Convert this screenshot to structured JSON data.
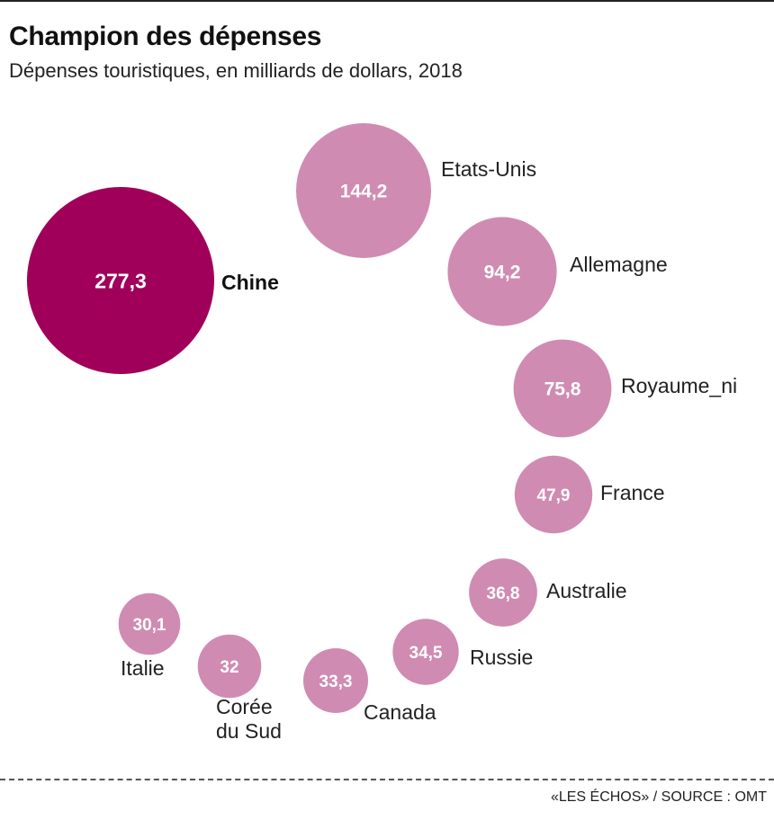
{
  "header": {
    "title": "Champion des dépenses",
    "subtitle": "Dépenses touristiques, en milliards de dollars, 2018"
  },
  "footer": {
    "source": "«LES ÉCHOS» / SOURCE : OMT"
  },
  "colors": {
    "highlight": "#a0005a",
    "default": "#d08bb2",
    "value_text": "#ffffff"
  },
  "chart_data": {
    "type": "bubble",
    "title": "Champion des dépenses",
    "subtitle": "Dépenses touristiques, en milliards de dollars, 2018",
    "unit": "milliards de dollars",
    "year": 2018,
    "series": [
      {
        "name": "Chine",
        "value": 277.3,
        "value_label": "277,3",
        "highlight": true
      },
      {
        "name": "Etats-Unis",
        "value": 144.2,
        "value_label": "144,2"
      },
      {
        "name": "Allemagne",
        "value": 94.2,
        "value_label": "94,2"
      },
      {
        "name": "Royaume_ni",
        "value": 75.8,
        "value_label": "75,8"
      },
      {
        "name": "France",
        "value": 47.9,
        "value_label": "47,9"
      },
      {
        "name": "Australie",
        "value": 36.8,
        "value_label": "36,8"
      },
      {
        "name": "Russie",
        "value": 34.5,
        "value_label": "34,5"
      },
      {
        "name": "Canada",
        "value": 33.3,
        "value_label": "33,3"
      },
      {
        "name": "Corée du Sud",
        "label_lines": [
          "Corée",
          "du Sud"
        ],
        "value": 32,
        "value_label": "32"
      },
      {
        "name": "Italie",
        "value": 30.1,
        "value_label": "30,1"
      }
    ]
  }
}
